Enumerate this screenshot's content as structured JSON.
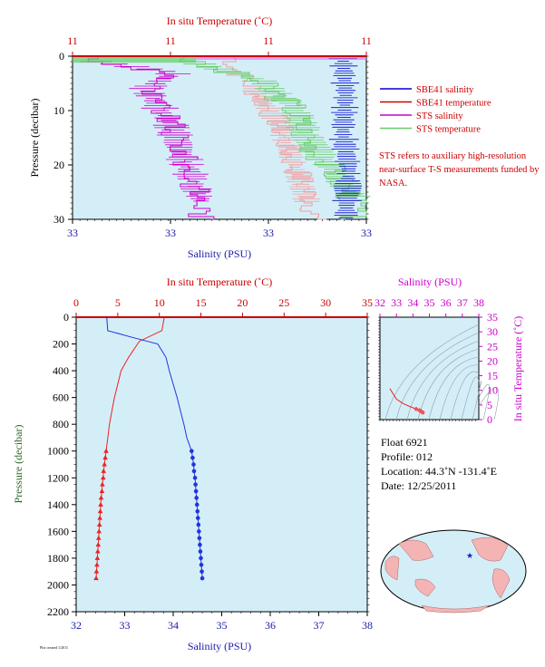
{
  "chart_data": [
    {
      "type": "line",
      "title": "",
      "top_axis_label": "In situ Temperature (˚C)",
      "top_tick_labels": [
        "11",
        "11",
        "11",
        "11"
      ],
      "xlabel": "Salinity (PSU)",
      "bottom_tick_labels": [
        "33",
        "33",
        "33",
        "33"
      ],
      "ylabel": "Pressure (decibar)",
      "ylim": [
        30,
        0
      ],
      "y_ticks": [
        0,
        10,
        20,
        30
      ],
      "grid": false,
      "legend_position": "right",
      "series": [
        {
          "name": "SBE41 salinity",
          "color": "#0000cc",
          "x": [
            0.92,
            0.93,
            0.92,
            0.94,
            0.93
          ],
          "y": [
            0,
            7,
            14,
            21,
            30
          ]
        },
        {
          "name": "SBE41 temperature",
          "color": "#cc0000",
          "x": [
            0,
            1
          ],
          "y": [
            0,
            0
          ]
        },
        {
          "name": "STS salinity",
          "color": "#cc00cc",
          "x": [
            0.08,
            0.35,
            0.25,
            0.33,
            0.44
          ],
          "y": [
            1,
            3,
            6,
            12,
            27
          ]
        },
        {
          "name": "STS temperature",
          "color": "#66cc66",
          "x": [
            0.4,
            0.62,
            0.75,
            0.8,
            0.96
          ],
          "y": [
            1,
            4,
            9,
            15,
            26
          ]
        }
      ],
      "footnote": "STS refers to auxiliary high-resolution near-surface T-S measurements funded by NASA."
    },
    {
      "type": "line",
      "top_axis_label": "In situ Temperature (˚C)",
      "temp_ticks": [
        0,
        5,
        10,
        15,
        20,
        25,
        30,
        35
      ],
      "xlabel": "Salinity (PSU)",
      "sal_ticks": [
        32,
        33,
        34,
        35,
        36,
        37,
        38
      ],
      "ylabel": "Pressure (decibar)",
      "pressure_ticks": [
        0,
        200,
        400,
        600,
        800,
        1000,
        1200,
        1400,
        1600,
        1800,
        2000,
        2200
      ],
      "ylim": [
        2200,
        0
      ],
      "series": [
        {
          "name": "Temperature",
          "color": "#ee2222",
          "unit": "C",
          "points": [
            [
              10.6,
              0
            ],
            [
              10.3,
              100
            ],
            [
              7.6,
              180
            ],
            [
              6.3,
              300
            ],
            [
              5.4,
              400
            ],
            [
              5.0,
              500
            ],
            [
              4.6,
              600
            ],
            [
              4.3,
              700
            ],
            [
              4.0,
              800
            ],
            [
              3.8,
              900
            ],
            [
              3.6,
              1000
            ],
            [
              3.5,
              1050
            ],
            [
              3.4,
              1100
            ],
            [
              3.3,
              1150
            ],
            [
              3.25,
              1200
            ],
            [
              3.15,
              1250
            ],
            [
              3.1,
              1300
            ],
            [
              3.0,
              1350
            ],
            [
              2.95,
              1400
            ],
            [
              2.9,
              1450
            ],
            [
              2.85,
              1500
            ],
            [
              2.8,
              1550
            ],
            [
              2.75,
              1600
            ],
            [
              2.7,
              1650
            ],
            [
              2.65,
              1700
            ],
            [
              2.6,
              1750
            ],
            [
              2.55,
              1800
            ],
            [
              2.5,
              1850
            ],
            [
              2.45,
              1900
            ],
            [
              2.4,
              1950
            ]
          ]
        },
        {
          "name": "Salinity",
          "color": "#2233dd",
          "unit": "PSU",
          "points": [
            [
              32.63,
              0
            ],
            [
              32.65,
              100
            ],
            [
              33.15,
              150
            ],
            [
              33.68,
              200
            ],
            [
              33.85,
              300
            ],
            [
              33.92,
              400
            ],
            [
              34.0,
              500
            ],
            [
              34.08,
              600
            ],
            [
              34.15,
              700
            ],
            [
              34.22,
              800
            ],
            [
              34.28,
              900
            ],
            [
              34.38,
              1000
            ],
            [
              34.4,
              1050
            ],
            [
              34.42,
              1100
            ],
            [
              34.43,
              1150
            ],
            [
              34.45,
              1200
            ],
            [
              34.46,
              1250
            ],
            [
              34.47,
              1300
            ],
            [
              34.48,
              1350
            ],
            [
              34.49,
              1400
            ],
            [
              34.5,
              1450
            ],
            [
              34.51,
              1500
            ],
            [
              34.52,
              1550
            ],
            [
              34.53,
              1600
            ],
            [
              34.54,
              1650
            ],
            [
              34.55,
              1700
            ],
            [
              34.56,
              1750
            ],
            [
              34.57,
              1800
            ],
            [
              34.58,
              1850
            ],
            [
              34.59,
              1900
            ],
            [
              34.6,
              1950
            ]
          ]
        }
      ],
      "marker_start_pressure": 1000
    },
    {
      "type": "scatter",
      "xlabel": "Salinity (PSU)",
      "x_ticks": [
        32,
        33,
        34,
        35,
        36,
        37,
        38
      ],
      "ylabel": "In situ Temperature (˚C)",
      "y_ticks": [
        0,
        5,
        10,
        15,
        20,
        25,
        30,
        35
      ],
      "points": [
        [
          32.6,
          10.6
        ],
        [
          33.0,
          7.0
        ],
        [
          33.4,
          5.5
        ],
        [
          33.8,
          4.5
        ],
        [
          34.2,
          3.6
        ],
        [
          34.4,
          3.2
        ],
        [
          34.5,
          2.8
        ],
        [
          34.6,
          2.4
        ]
      ]
    }
  ],
  "float_info": {
    "float": "Float  6921",
    "profile": "Profile:  012",
    "location": "Location:  44.3˚N  -131.4˚E",
    "date": "Date:  12/25/2011"
  },
  "tiny_text": "Plot created 1/2011"
}
